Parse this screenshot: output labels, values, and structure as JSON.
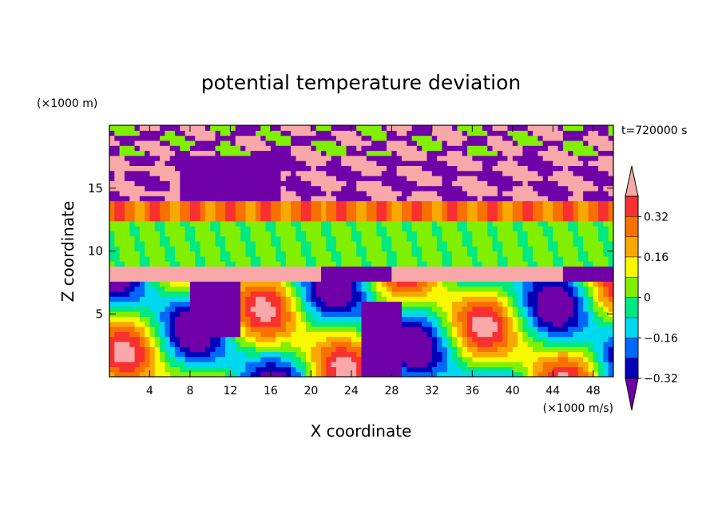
{
  "chart_data": {
    "type": "heatmap",
    "title": "potential temperature deviation",
    "time_label": "t=720000 s",
    "xlabel": "X coordinate",
    "ylabel": "Z coordinate",
    "x_unit": "(×1000 m/s)",
    "y_unit": "(×1000 m)",
    "xlim": [
      0,
      50
    ],
    "ylim": [
      0,
      20
    ],
    "x_ticks": [
      4,
      8,
      12,
      16,
      20,
      24,
      28,
      32,
      36,
      40,
      44,
      48
    ],
    "y_ticks": [
      5,
      10,
      15
    ],
    "x_tick_labels": [
      "4",
      "8",
      "12",
      "16",
      "20",
      "24",
      "28",
      "32",
      "36",
      "40",
      "44",
      "48"
    ],
    "y_tick_labels": [
      "5",
      "10",
      "15"
    ],
    "colorbar": {
      "levels": [
        0.4,
        0.32,
        0.24,
        0.16,
        0.08,
        0,
        -0.08,
        -0.16,
        -0.24,
        -0.32,
        -0.4
      ],
      "labeled_levels": [
        "0.32",
        "0.16",
        "0",
        "−0.16",
        "−0.32"
      ],
      "colors": [
        "#f8a8a8",
        "#f83030",
        "#f87000",
        "#f8a800",
        "#f8f800",
        "#80f000",
        "#00e880",
        "#00d8f0",
        "#0068f8",
        "#0000b8",
        "#7000a8"
      ],
      "extend": "both"
    },
    "layers": [
      {
        "z": [
          0,
          2.5
        ],
        "pattern": "mixed"
      },
      {
        "z": [
          2.5,
          7.5
        ],
        "pattern": "mixed-strong"
      },
      {
        "z": [
          7.5,
          9
        ],
        "value": 0.4
      },
      {
        "z": [
          9,
          12.5
        ],
        "value": 0.02
      },
      {
        "z": [
          12.5,
          14
        ],
        "value": 0.3
      },
      {
        "z": [
          14,
          20
        ],
        "pattern": "upper-mixed"
      }
    ]
  }
}
